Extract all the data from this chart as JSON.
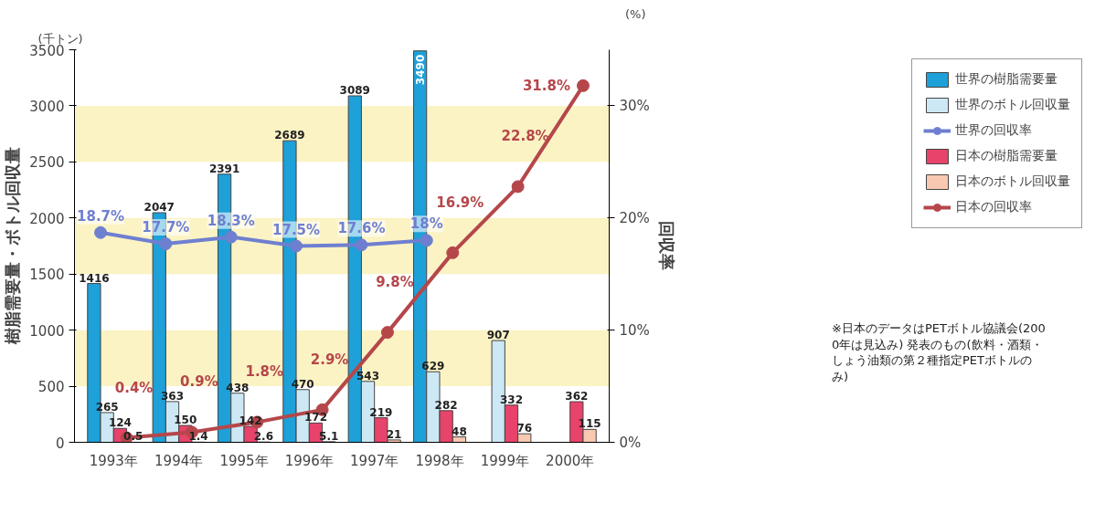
{
  "chart_data": {
    "type": "bar",
    "ylabel": "樹脂需要量・ボトル回収量",
    "y2label": "回収率",
    "categories": [
      "1993年",
      "1994年",
      "1995年",
      "1996年",
      "1997年",
      "1998年",
      "1999年",
      "2000年"
    ],
    "series": [
      {
        "name": "世界の樹脂需要量",
        "color": "#1ea0d8",
        "values": [
          1416,
          2047,
          2391,
          2689,
          3089,
          3490,
          null,
          null
        ],
        "value_labels": [
          "1416",
          "2047",
          "2391",
          "2689",
          "3089",
          "3490",
          null,
          null
        ]
      },
      {
        "name": "世界のボトル回収量",
        "color": "#cde8f5",
        "values": [
          265,
          363,
          438,
          470,
          543,
          629,
          907,
          null
        ],
        "value_labels": [
          "265",
          "363",
          "438",
          "470",
          "543",
          "629",
          "907",
          null
        ]
      },
      {
        "name": "世界の回収率",
        "type": "line",
        "axis": "y2",
        "color": "#6f7fd0",
        "values": [
          18.7,
          17.7,
          18.3,
          17.5,
          17.6,
          18,
          null,
          null
        ],
        "value_labels": [
          "18.7%",
          "17.7%",
          "18.3%",
          "17.5%",
          "17.6%",
          "18%",
          null,
          null
        ]
      },
      {
        "name": "日本の樹脂需要量",
        "color": "#e8436a",
        "values": [
          124,
          150,
          142,
          172,
          219,
          282,
          332,
          362
        ],
        "value_labels": [
          "124",
          "150",
          "142",
          "172",
          "219",
          "282",
          "332",
          "362"
        ]
      },
      {
        "name": "日本のボトル回収量",
        "color": "#f8c8b0",
        "values": [
          0.5,
          1.4,
          2.6,
          5.1,
          21,
          48,
          76,
          115
        ],
        "value_labels": [
          "0.5",
          "1.4",
          "2.6",
          "5.1",
          "21",
          "48",
          "76",
          "115"
        ]
      },
      {
        "name": "日本の回収率",
        "type": "line",
        "axis": "y2",
        "color": "#b5474a",
        "values": [
          0.4,
          0.9,
          1.8,
          2.9,
          9.8,
          16.9,
          22.8,
          31.8
        ],
        "value_labels": [
          "0.4%",
          "0.9%",
          "1.8%",
          "2.9%",
          "9.8%",
          "16.9%",
          "22.8%",
          "31.8%"
        ]
      }
    ],
    "ylim": [
      0,
      3500
    ],
    "yticks": [
      0,
      500,
      1000,
      1500,
      2000,
      2500,
      3000,
      3500
    ],
    "y2lim": [
      0,
      35
    ],
    "y2ticks": [
      {
        "value": 0,
        "label": "0%"
      },
      {
        "value": 10,
        "label": "10%"
      },
      {
        "value": 20,
        "label": "20%"
      },
      {
        "value": 30,
        "label": "30%"
      }
    ],
    "bands": [
      {
        "axis": "y",
        "from": 500,
        "to": 1000,
        "color": "#fbf3c4"
      },
      {
        "axis": "y",
        "from": 1500,
        "to": 2000,
        "color": "#fbf3c4"
      },
      {
        "axis": "y",
        "from": 2500,
        "to": 3000,
        "color": "#fbf3c4"
      }
    ],
    "marker": "circle",
    "grid": false,
    "legend": "right",
    "annotations": [
      "(千トン)",
      "(%)",
      "※日本のデータはPETボトル協議会(2000年は見込み) 発表のもの(飲料・酒類・しょう油類の第２種指定PETボトルのみ)"
    ]
  }
}
